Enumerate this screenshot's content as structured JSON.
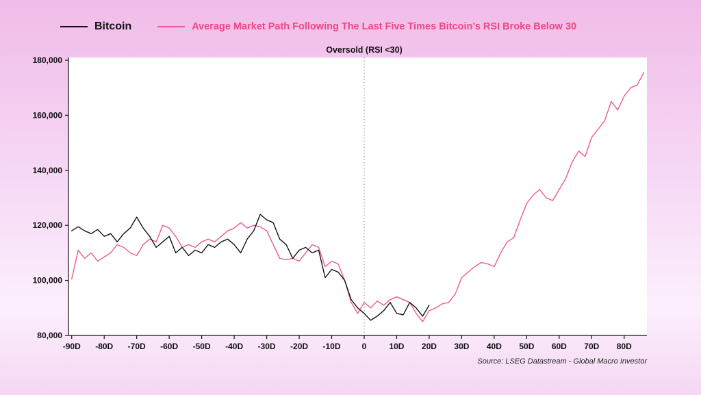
{
  "legend": {
    "bitcoin_label": "Bitcoin",
    "average_label": "Average Market Path Following The Last Five Times Bitcoin’s RSI Broke Below 30"
  },
  "title": "Oversold (RSI <30)",
  "source": "Source: LSEG Datastream - Global Macro Investor",
  "colors": {
    "bitcoin": "#111111",
    "average": "#ef5a8c",
    "average_text": "#f04782",
    "annotation_line": "#888888",
    "plot_background": "#ffffff",
    "axis": "#111111"
  },
  "chart_data": {
    "type": "line",
    "title": "Oversold (RSI <30)",
    "xlabel": "",
    "ylabel": "",
    "xlim": [
      -91,
      87
    ],
    "ylim": [
      80000,
      180000
    ],
    "grid": false,
    "legend_position": "top",
    "annotation_line_x": 0,
    "x_tick_values": [
      -90,
      -80,
      -70,
      -60,
      -50,
      -40,
      -30,
      -20,
      -10,
      0,
      10,
      20,
      30,
      40,
      50,
      60,
      70,
      80
    ],
    "x_tick_labels": [
      "-90D",
      "-80D",
      "-70D",
      "-60D",
      "-50D",
      "-40D",
      "-30D",
      "-20D",
      "-10D",
      "0",
      "10D",
      "20D",
      "30D",
      "40D",
      "50D",
      "60D",
      "70D",
      "80D"
    ],
    "y_tick_values": [
      80000,
      100000,
      120000,
      140000,
      160000,
      180000
    ],
    "y_tick_labels": [
      "80,000",
      "100,000",
      "120,000",
      "140,000",
      "160,000",
      "180,000"
    ],
    "series": [
      {
        "name": "Bitcoin",
        "color": "#111111",
        "x": [
          -90,
          -88,
          -86,
          -84,
          -82,
          -80,
          -78,
          -76,
          -74,
          -72,
          -70,
          -68,
          -66,
          -64,
          -62,
          -60,
          -58,
          -56,
          -54,
          -52,
          -50,
          -48,
          -46,
          -44,
          -42,
          -40,
          -38,
          -36,
          -34,
          -32,
          -30,
          -28,
          -26,
          -24,
          -22,
          -20,
          -18,
          -16,
          -14,
          -12,
          -10,
          -8,
          -6,
          -4,
          -2,
          0,
          2,
          4,
          6,
          8,
          10,
          12,
          14,
          16,
          18,
          20
        ],
        "y": [
          118000,
          119500,
          118000,
          117000,
          118500,
          116000,
          117000,
          114000,
          117000,
          119000,
          123000,
          119000,
          116000,
          112000,
          114000,
          116000,
          110000,
          112000,
          109000,
          111000,
          110000,
          113000,
          112000,
          114000,
          115000,
          113000,
          110000,
          115000,
          118000,
          124000,
          122000,
          121000,
          115000,
          113000,
          108000,
          111000,
          112000,
          110000,
          111000,
          101000,
          104000,
          103000,
          100000,
          93000,
          90000,
          88000,
          85500,
          87000,
          89000,
          92000,
          88000,
          87500,
          92000,
          90000,
          87000,
          91000
        ]
      },
      {
        "name": "Average Market Path Following The Last Five Times Bitcoin’s RSI Broke Below 30",
        "color": "#ef5a8c",
        "x": [
          -90,
          -88,
          -86,
          -84,
          -82,
          -80,
          -78,
          -76,
          -74,
          -72,
          -70,
          -68,
          -66,
          -64,
          -62,
          -60,
          -58,
          -56,
          -54,
          -52,
          -50,
          -48,
          -46,
          -44,
          -42,
          -40,
          -38,
          -36,
          -34,
          -32,
          -30,
          -28,
          -26,
          -24,
          -22,
          -20,
          -18,
          -16,
          -14,
          -12,
          -10,
          -8,
          -6,
          -4,
          -2,
          0,
          2,
          4,
          6,
          8,
          10,
          12,
          14,
          16,
          18,
          20,
          22,
          24,
          26,
          28,
          30,
          32,
          34,
          36,
          38,
          40,
          42,
          44,
          46,
          48,
          50,
          52,
          54,
          56,
          58,
          60,
          62,
          64,
          66,
          68,
          70,
          72,
          74,
          76,
          78,
          80,
          82,
          84,
          86
        ],
        "y": [
          100500,
          111000,
          108000,
          110000,
          107000,
          108500,
          110000,
          113000,
          112000,
          110000,
          109000,
          113000,
          115000,
          114000,
          120000,
          119000,
          116000,
          112000,
          113000,
          112000,
          114000,
          115000,
          114000,
          116000,
          118000,
          119000,
          121000,
          119000,
          120000,
          119500,
          118000,
          113000,
          108000,
          107500,
          108000,
          107000,
          110000,
          113000,
          112000,
          105000,
          107000,
          106000,
          100000,
          92000,
          88000,
          92000,
          90000,
          92500,
          91000,
          93000,
          94000,
          93000,
          92000,
          88000,
          85000,
          89000,
          90000,
          91500,
          92000,
          95000,
          101000,
          103000,
          105000,
          106500,
          106000,
          105000,
          110000,
          114000,
          115500,
          122000,
          128000,
          131000,
          133000,
          130000,
          129000,
          133000,
          137000,
          143000,
          147000,
          145000,
          152000,
          155000,
          158000,
          165000,
          162000,
          167000,
          170000,
          171000,
          175500
        ]
      }
    ]
  }
}
